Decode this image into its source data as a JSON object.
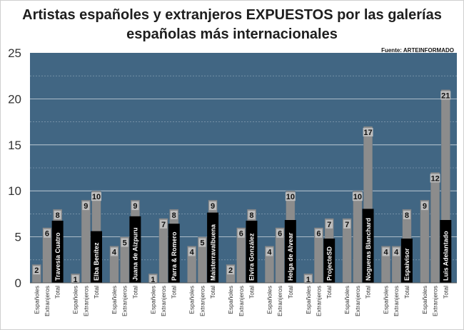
{
  "chart_data": {
    "type": "bar",
    "title": "Artistas españoles y extranjeros EXPUESTOS por las galerías españolas más internacionales",
    "source": "Fuente: ARTEINFORMADO",
    "ylim": [
      0,
      25
    ],
    "yticks": [
      0,
      5,
      10,
      15,
      20,
      25
    ],
    "grid": true,
    "bar_categories": [
      "Españoles",
      "Extranjeros",
      "Total"
    ],
    "colors": {
      "plot_bg": "#416683",
      "bar": "#8c8c8c",
      "label_box": "#000000",
      "axis_text": "#333333"
    },
    "groups": [
      {
        "name": "Travesía Cuatro",
        "values": [
          2,
          6,
          8
        ]
      },
      {
        "name": "Elba Benítez",
        "values": [
          1,
          9,
          10
        ]
      },
      {
        "name": "Juana de Aizpuru",
        "values": [
          4,
          5,
          9
        ]
      },
      {
        "name": "Parra & Romero",
        "values": [
          1,
          7,
          8
        ]
      },
      {
        "name": "Maisterravalbuena",
        "values": [
          4,
          5,
          9
        ]
      },
      {
        "name": "Elvira González",
        "values": [
          2,
          6,
          8
        ]
      },
      {
        "name": "Helga de Alvear",
        "values": [
          4,
          6,
          10
        ]
      },
      {
        "name": "ProjecteSD",
        "values": [
          1,
          6,
          7
        ]
      },
      {
        "name": "Nogueras Blanchard",
        "values": [
          7,
          10,
          17
        ]
      },
      {
        "name": "Espaivisor",
        "values": [
          4,
          4,
          8
        ]
      },
      {
        "name": "Luis Adelantado",
        "values": [
          9,
          12,
          21
        ]
      }
    ]
  }
}
